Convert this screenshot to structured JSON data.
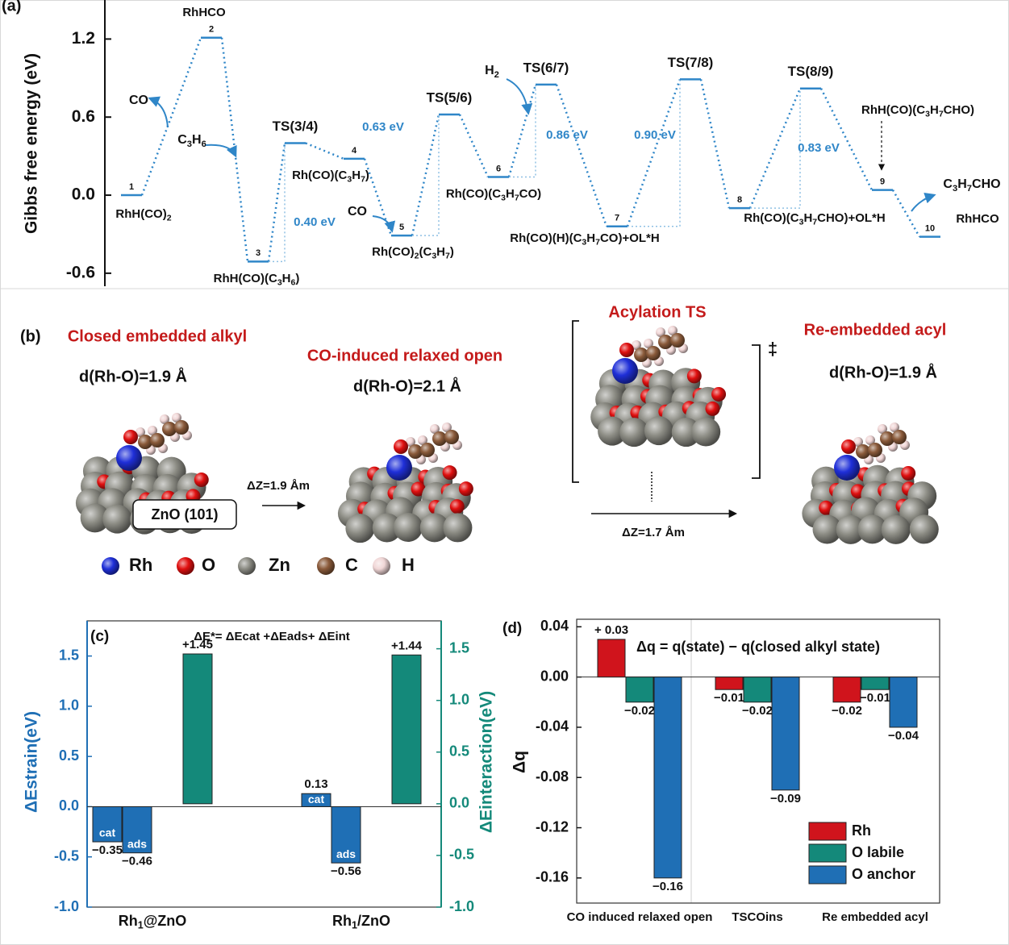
{
  "chart_data": [
    {
      "type": "energy-profile",
      "label": "(a)",
      "ylabel": "Gibbs free energy (eV)",
      "ylim": [
        -0.7,
        1.5
      ],
      "yticks": [
        -0.6,
        {
          "value": 0,
          "label": "0.0"
        },
        0.6,
        1.2
      ],
      "color": "#2f86c8",
      "states": [
        {
          "name": "1",
          "value": 0.0,
          "species": "RhH(CO)2"
        },
        {
          "name": "2",
          "value": 1.21,
          "species": "RhHCO"
        },
        {
          "name": "3",
          "value": -0.51,
          "species": "RhH(CO)(C3H6)"
        },
        {
          "name": "TS(3/4)",
          "value": 0.4
        },
        {
          "name": "4",
          "value": 0.28,
          "species": "Rh(CO)(C3H7)"
        },
        {
          "name": "5",
          "value": -0.31,
          "species": "Rh(CO)2(C3H7)"
        },
        {
          "name": "TS(5/6)",
          "value": 0.62
        },
        {
          "name": "6",
          "value": 0.14,
          "species": "Rh(CO)(C3H7CO)"
        },
        {
          "name": "TS(6/7)",
          "value": 0.85
        },
        {
          "name": "7",
          "value": -0.24,
          "species": "Rh(CO)(H)(C3H7CO)+OL*H"
        },
        {
          "name": "TS(7/8)",
          "value": 0.89
        },
        {
          "name": "8",
          "value": -0.1,
          "species": "Rh(CO)(C3H7CHO)+OL*H"
        },
        {
          "name": "TS(8/9)",
          "value": 0.82
        },
        {
          "name": "9",
          "value": 0.04,
          "species": "RhH(CO)(C3H7CHO)"
        },
        {
          "name": "10",
          "value": -0.32,
          "species": "RhHCO"
        }
      ],
      "barriers": [
        "0.40 eV",
        "0.63 eV",
        "0.86 eV",
        "0.90 eV",
        "0.83 eV"
      ],
      "reactants": [
        "CO",
        "C3H6",
        "CO",
        "H2",
        "C3H7CHO"
      ]
    },
    {
      "type": "bar",
      "label": "(c)",
      "title": "ΔE*= ΔEcat +ΔEads+ ΔEint",
      "categories": [
        "Rh1@ZnO",
        "Rh1/ZnO"
      ],
      "ylabel": "ΔEstrain(eV)",
      "y2label": "ΔEinteraction(eV)",
      "ylim": [
        -1.0,
        1.85
      ],
      "y2lim": [
        -1.0,
        1.77
      ],
      "yticks": [
        {
          "value": -1,
          "label": "-1.0"
        },
        -0.5,
        {
          "value": 0,
          "label": "0.0"
        },
        0.5,
        {
          "value": 1,
          "label": "1.0"
        },
        1.5
      ],
      "y2ticks": [
        {
          "value": -1,
          "label": "-1.0"
        },
        -0.5,
        {
          "value": 0,
          "label": "0.0"
        },
        0.5,
        {
          "value": 1,
          "label": "1.0"
        },
        1.5
      ],
      "ycolor": "#1f6fb5",
      "y2color": "#14897a",
      "series": [
        {
          "name": "cat",
          "color": "#1f6fb5",
          "values": [
            -0.35,
            0.13
          ],
          "value_labels": [
            "−0.35",
            "0.13"
          ]
        },
        {
          "name": "ads",
          "color": "#1f6fb5",
          "values": [
            -0.46,
            -0.56
          ],
          "value_labels": [
            "−0.46",
            "−0.56"
          ]
        },
        {
          "color": "#14897a",
          "axis": "y2",
          "values": [
            1.45,
            1.44
          ],
          "value_labels": [
            "+1.45",
            "+1.44"
          ]
        }
      ]
    },
    {
      "type": "bar",
      "label": "(d)",
      "title": "Δq = q(state) − q(closed alkyl state)",
      "categories": [
        "CO induced relaxed open",
        "TSCOins",
        "Re embedded acyl"
      ],
      "ylabel": "Δq",
      "ylim": [
        -0.18,
        0.046
      ],
      "yticks": [
        -0.16,
        -0.12,
        -0.08,
        -0.04,
        {
          "value": 0,
          "label": "0.00"
        },
        0.04
      ],
      "legend": "lower right",
      "series": [
        {
          "name": "Rh",
          "color": "#d0141c",
          "values": [
            0.03,
            -0.01,
            -0.02
          ],
          "value_labels": [
            "+ 0.03",
            "−0.01",
            "−0.02"
          ]
        },
        {
          "name": "O labile",
          "color": "#14897a",
          "values": [
            -0.02,
            -0.02,
            -0.01
          ],
          "value_labels": [
            "−0.02",
            "−0.02",
            "−0.01"
          ]
        },
        {
          "name": "O anchor",
          "color": "#1f6fb5",
          "values": [
            -0.16,
            -0.09,
            -0.04
          ],
          "value_labels": [
            "−0.16",
            "−0.09",
            "−0.04"
          ]
        }
      ]
    }
  ],
  "diagram": {
    "label": "(b)",
    "states": [
      {
        "title": "Closed embedded alkyl",
        "distance": "d(Rh-O)=1.9 Å"
      },
      {
        "title": "CO-induced relaxed open",
        "distance": "d(Rh-O)=2.1 Å"
      },
      {
        "title": "Acylation TS"
      },
      {
        "title": "Re-embedded acyl",
        "distance": "d(Rh-O)=1.9 Å"
      }
    ],
    "surface": "ZnO (101)",
    "shifts": [
      "ΔZ=1.9 Åm",
      "ΔZ=1.7 Åm"
    ],
    "ts_mark": "‡",
    "legend": [
      {
        "name": "Rh",
        "color": "#1f2fd8"
      },
      {
        "name": "O",
        "color": "#e01010"
      },
      {
        "name": "Zn",
        "color": "#8c8c84"
      },
      {
        "name": "C",
        "color": "#8a5a3a"
      },
      {
        "name": "H",
        "color": "#f0d6d6"
      }
    ]
  }
}
